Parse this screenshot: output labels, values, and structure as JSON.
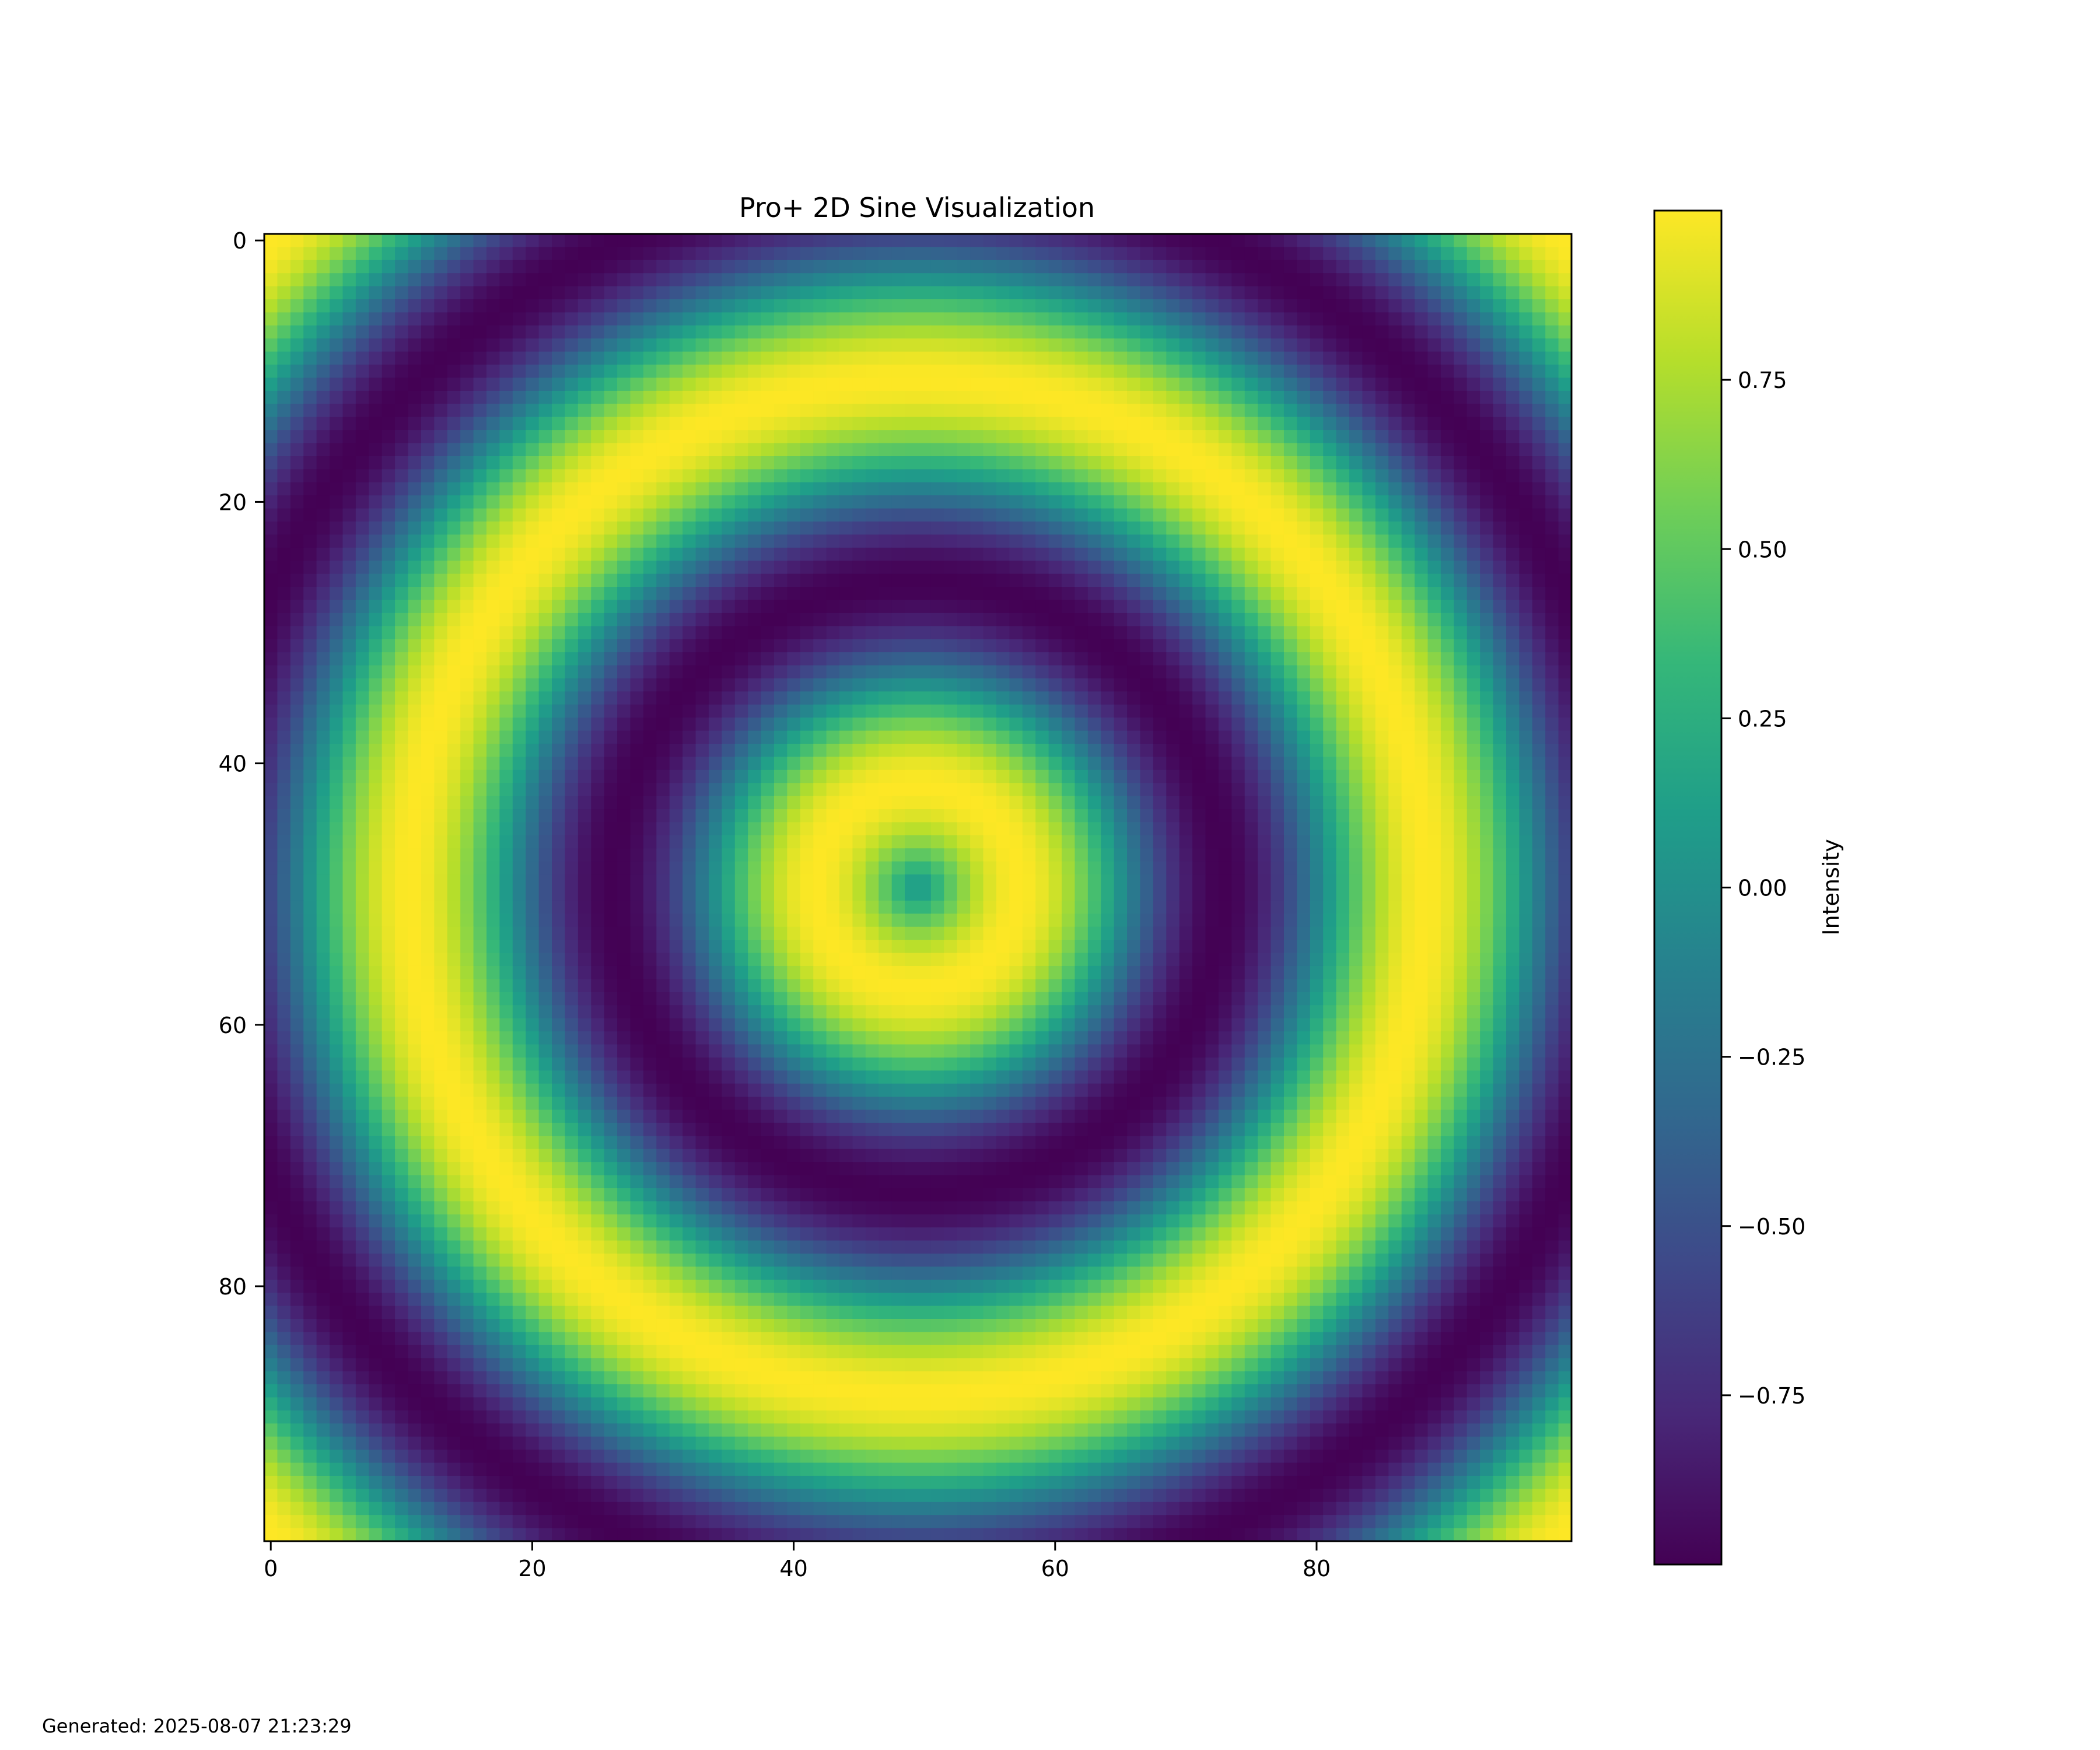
{
  "chart_data": {
    "type": "heatmap",
    "title": "Pro+ 2D Sine Visualization",
    "xlabel": "",
    "ylabel": "",
    "function": "z = sin(sqrt(x^2 + y^2)), x,y in [-10, 10] on a 100x100 grid",
    "rows": 100,
    "cols": 100,
    "x_ticks": [
      0,
      20,
      40,
      60,
      80
    ],
    "y_ticks": [
      0,
      20,
      40,
      60,
      80
    ],
    "xlim": [
      -0.5,
      99.5
    ],
    "ylim": [
      99.5,
      -0.5
    ],
    "y_axis_inverted": true,
    "colormap": "viridis",
    "colormap_stops": [
      "#440154",
      "#482878",
      "#3e4989",
      "#31688e",
      "#26828e",
      "#1f9e89",
      "#35b779",
      "#6ece58",
      "#b5de2b",
      "#fde725"
    ],
    "color_range": [
      -1.0,
      1.0
    ],
    "colorbar": {
      "label": "Intensity",
      "ticks": [
        0.75,
        0.5,
        0.25,
        0.0,
        -0.25,
        -0.5,
        -0.75
      ],
      "tick_labels": [
        "0.75",
        "0.50",
        "0.25",
        "0.00",
        "−0.25",
        "−0.50",
        "−0.75"
      ]
    },
    "grid": false
  },
  "footer": {
    "generated_text": "Generated: 2025-08-07 21:23:29"
  }
}
